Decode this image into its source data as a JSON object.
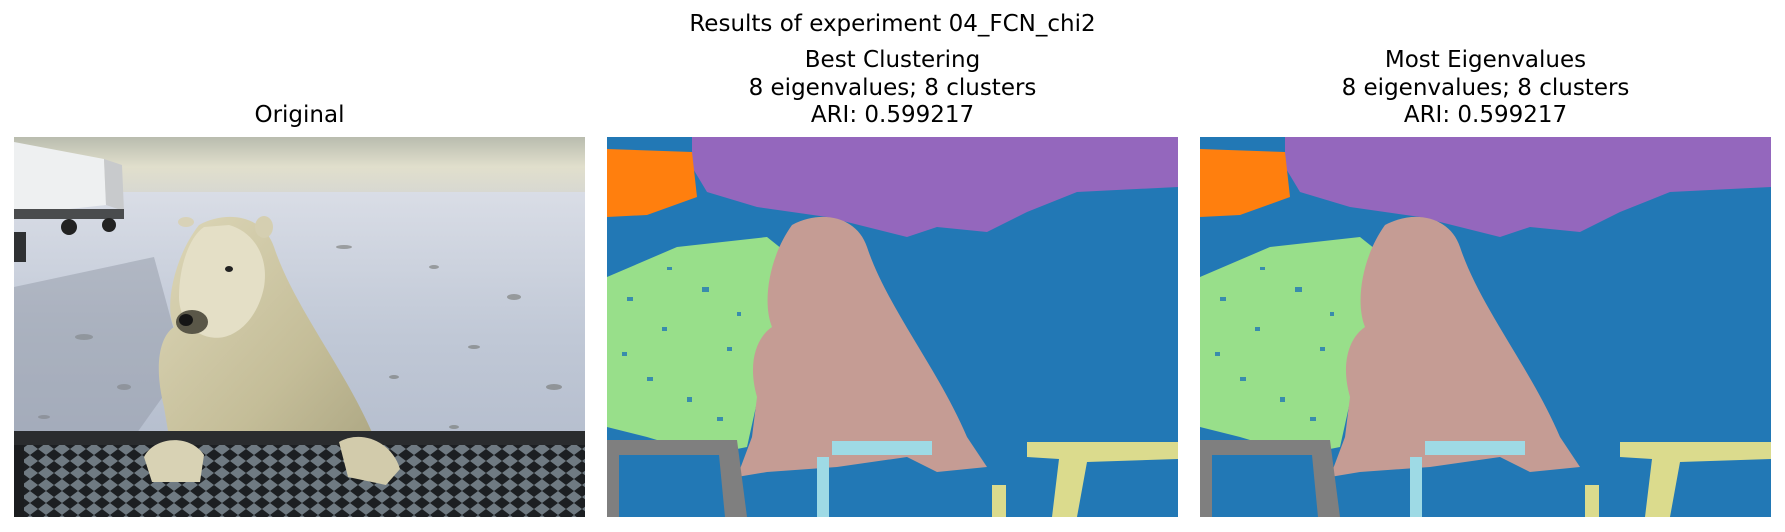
{
  "figure": {
    "suptitle": "Results of experiment 04_FCN_chi2"
  },
  "panels": [
    {
      "title": "Original"
    },
    {
      "title": "Best Clustering\n8 eigenvalues; 8 clusters\nARI: 0.599217"
    },
    {
      "title": "Most Eigenvalues\n8 eigenvalues; 8 clusters\nARI: 0.599217"
    }
  ],
  "colors": {
    "background_cluster": "#2278b5",
    "sky_cluster": "#9467bd",
    "vehicle_cluster": "#ff7f0e",
    "ground_cluster": "#98df8a",
    "bear_cluster": "#c59c94",
    "rail_cluster": "#9edae5",
    "post_cluster": "#dbdb8d",
    "fence_cluster": "#7f7f7f"
  }
}
